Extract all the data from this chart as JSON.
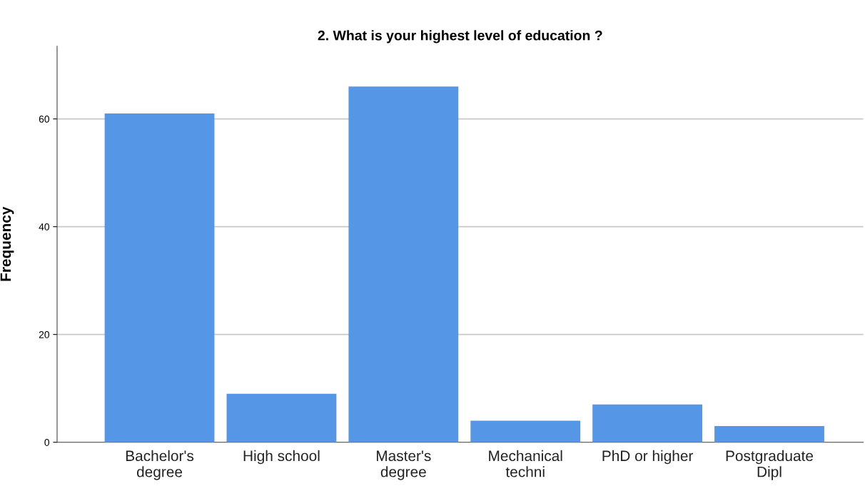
{
  "chart_data": {
    "type": "bar",
    "title": "2. What is your highest level of education ?",
    "ylabel": "Frequency",
    "categories": [
      "Bachelor's\ndegree",
      "High school",
      "Master's\ndegree",
      "Mechanical\ntechni",
      "PhD or higher",
      "Postgraduate\nDipl"
    ],
    "values": [
      61,
      9,
      66,
      4,
      7,
      3
    ],
    "color": "#5596e6",
    "ylim": [
      0,
      73.5
    ],
    "yticks": [
      0,
      20,
      40,
      60
    ],
    "grid": "y"
  }
}
